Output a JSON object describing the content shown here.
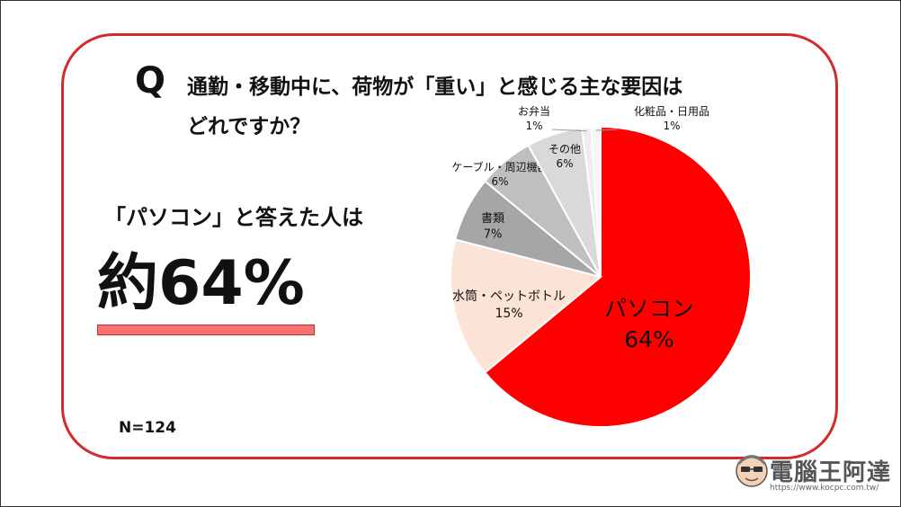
{
  "question": {
    "letter": "Q",
    "line1": "通勤・移動中に、荷物が「重い」と感じる主な要因は",
    "line2": "どれですか？"
  },
  "answer": {
    "lead": "「パソコン」と答えた人は",
    "stat": "約64%"
  },
  "sample": "N=124",
  "watermark": {
    "name": "電腦王阿達",
    "url": "https://www.kocpc.com.tw/"
  },
  "chart_data": {
    "type": "pie",
    "unit": "%",
    "start_angle_deg": 0,
    "direction": "clockwise",
    "slices": [
      {
        "label": "パソコン",
        "value": 64,
        "color": "#ff0000"
      },
      {
        "label": "水筒・ペットボトル",
        "value": 15,
        "color": "#fbe3d6"
      },
      {
        "label": "書類",
        "value": 7,
        "color": "#a6a6a6"
      },
      {
        "label": "ケーブル・周辺機器",
        "value": 6,
        "color": "#bfbfbf"
      },
      {
        "label": "その他",
        "value": 6,
        "color": "#d9d9d9"
      },
      {
        "label": "お弁当",
        "value": 1,
        "color": "#eeeeee"
      },
      {
        "label": "化粧品・日用品",
        "value": 1,
        "color": "#f5f5f5"
      }
    ]
  }
}
